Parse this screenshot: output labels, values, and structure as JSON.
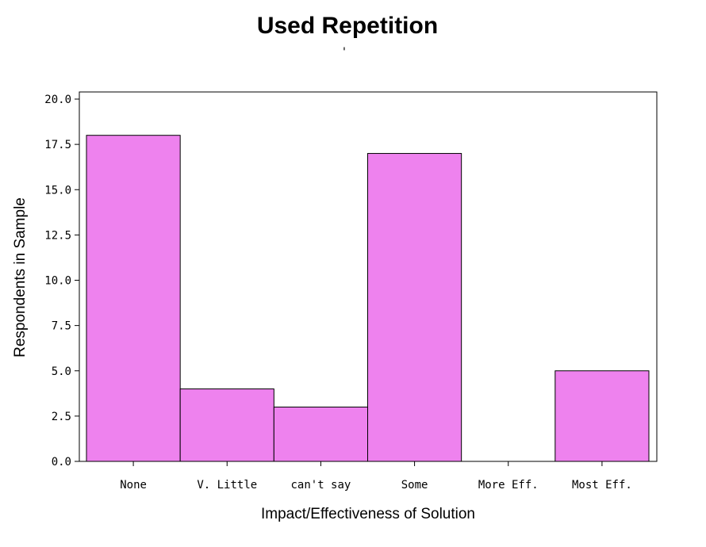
{
  "chart_data": {
    "type": "bar",
    "title": "Used Repetition",
    "subtitle": "'",
    "xlabel": "Impact/Effectiveness of Solution",
    "ylabel": "Respondents in Sample",
    "categories": [
      "None",
      "V. Little",
      "can't say",
      "Some",
      "More Eff.",
      "Most Eff."
    ],
    "values": [
      18,
      4,
      3,
      17,
      0,
      5
    ],
    "ylim": [
      0,
      20
    ],
    "yticks": [
      "0.0",
      "2.5",
      "5.0",
      "7.5",
      "10.0",
      "12.5",
      "15.0",
      "17.5",
      "20.0"
    ],
    "grid": false,
    "legend": "none",
    "colors": {
      "bar": "#ee82ee",
      "outline": "#000000"
    }
  }
}
